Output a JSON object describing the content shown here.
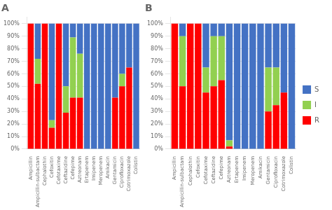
{
  "chart_data": [
    {
      "type": "bar",
      "title": "A",
      "stacked": true,
      "grid": true,
      "categories": [
        "Ampicillin",
        "Ampicillin-sulbactam",
        "Cephalothin",
        "Cefoxitin",
        "Cefotaxime",
        "Ceftazidine",
        "Cefepime",
        "Aztreonam",
        "Ertapenem",
        "Imipenem",
        "Meropenem",
        "Amikacin",
        "Gentamicin",
        "Ciprofloxacin",
        "Cotrimoxazole",
        "Colistin"
      ],
      "series": [
        {
          "name": "R",
          "color": "#FF0000",
          "values": [
            100,
            52,
            100,
            17,
            100,
            29,
            41,
            41,
            0,
            0,
            0,
            0,
            41,
            50,
            65,
            0
          ]
        },
        {
          "name": "I",
          "color": "#92D050",
          "values": [
            0,
            20,
            0,
            6,
            0,
            21,
            48,
            35,
            0,
            0,
            0,
            0,
            0,
            10,
            0,
            0
          ]
        },
        {
          "name": "S",
          "color": "#4472C4",
          "values": [
            0,
            28,
            0,
            77,
            0,
            50,
            11,
            24,
            100,
            100,
            100,
            100,
            59,
            40,
            35,
            100
          ]
        }
      ],
      "ylim": [
        0,
        105
      ],
      "yticks": [
        {
          "value": 0,
          "label": "0%"
        },
        {
          "value": 10,
          "label": "10%"
        },
        {
          "value": 20,
          "label": "20%"
        },
        {
          "value": 30,
          "label": "30%"
        },
        {
          "value": 40,
          "label": "40%"
        },
        {
          "value": 50,
          "label": "50%"
        },
        {
          "value": 60,
          "label": "60%"
        },
        {
          "value": 70,
          "label": "70%"
        },
        {
          "value": 80,
          "label": "80%"
        },
        {
          "value": 90,
          "label": "90%"
        },
        {
          "value": 100,
          "label": "100%"
        }
      ]
    },
    {
      "type": "bar",
      "title": "B",
      "stacked": true,
      "grid": true,
      "legend": "right",
      "categories": [
        "Ampicillin",
        "Ampicillin-sulbactam",
        "Cephalothin",
        "Cefoxitin",
        "Cefotaxime",
        "Ceftazidine",
        "Cefepime",
        "Aztreonam",
        "Ertapenem",
        "Imipenem",
        "Meropenem",
        "Amikacin",
        "Gentamicin",
        "Ciprofloxacin",
        "Cotrimoxazole",
        "Colistin"
      ],
      "series": [
        {
          "name": "R",
          "color": "#FF0000",
          "values": [
            100,
            50,
            100,
            100,
            45,
            50,
            55,
            2,
            0,
            0,
            0,
            0,
            30,
            35,
            45,
            0
          ]
        },
        {
          "name": "I",
          "color": "#92D050",
          "values": [
            0,
            40,
            0,
            0,
            20,
            40,
            35,
            5,
            0,
            0,
            0,
            0,
            35,
            30,
            0,
            0
          ]
        },
        {
          "name": "S",
          "color": "#4472C4",
          "values": [
            0,
            10,
            0,
            0,
            35,
            10,
            10,
            93,
            100,
            100,
            100,
            100,
            35,
            35,
            55,
            100
          ]
        }
      ],
      "ylim": [
        0,
        105
      ],
      "yticks": [
        {
          "value": 0,
          "label": "0%"
        },
        {
          "value": 10,
          "label": "10%"
        },
        {
          "value": 20,
          "label": "20%"
        },
        {
          "value": 30,
          "label": "30%"
        },
        {
          "value": 40,
          "label": "40%"
        },
        {
          "value": 50,
          "label": "50%"
        },
        {
          "value": 60,
          "label": "60%"
        },
        {
          "value": 70,
          "label": "70%"
        },
        {
          "value": 80,
          "label": "80%"
        },
        {
          "value": 90,
          "label": "90%"
        },
        {
          "value": 100,
          "label": "100%"
        }
      ]
    }
  ]
}
